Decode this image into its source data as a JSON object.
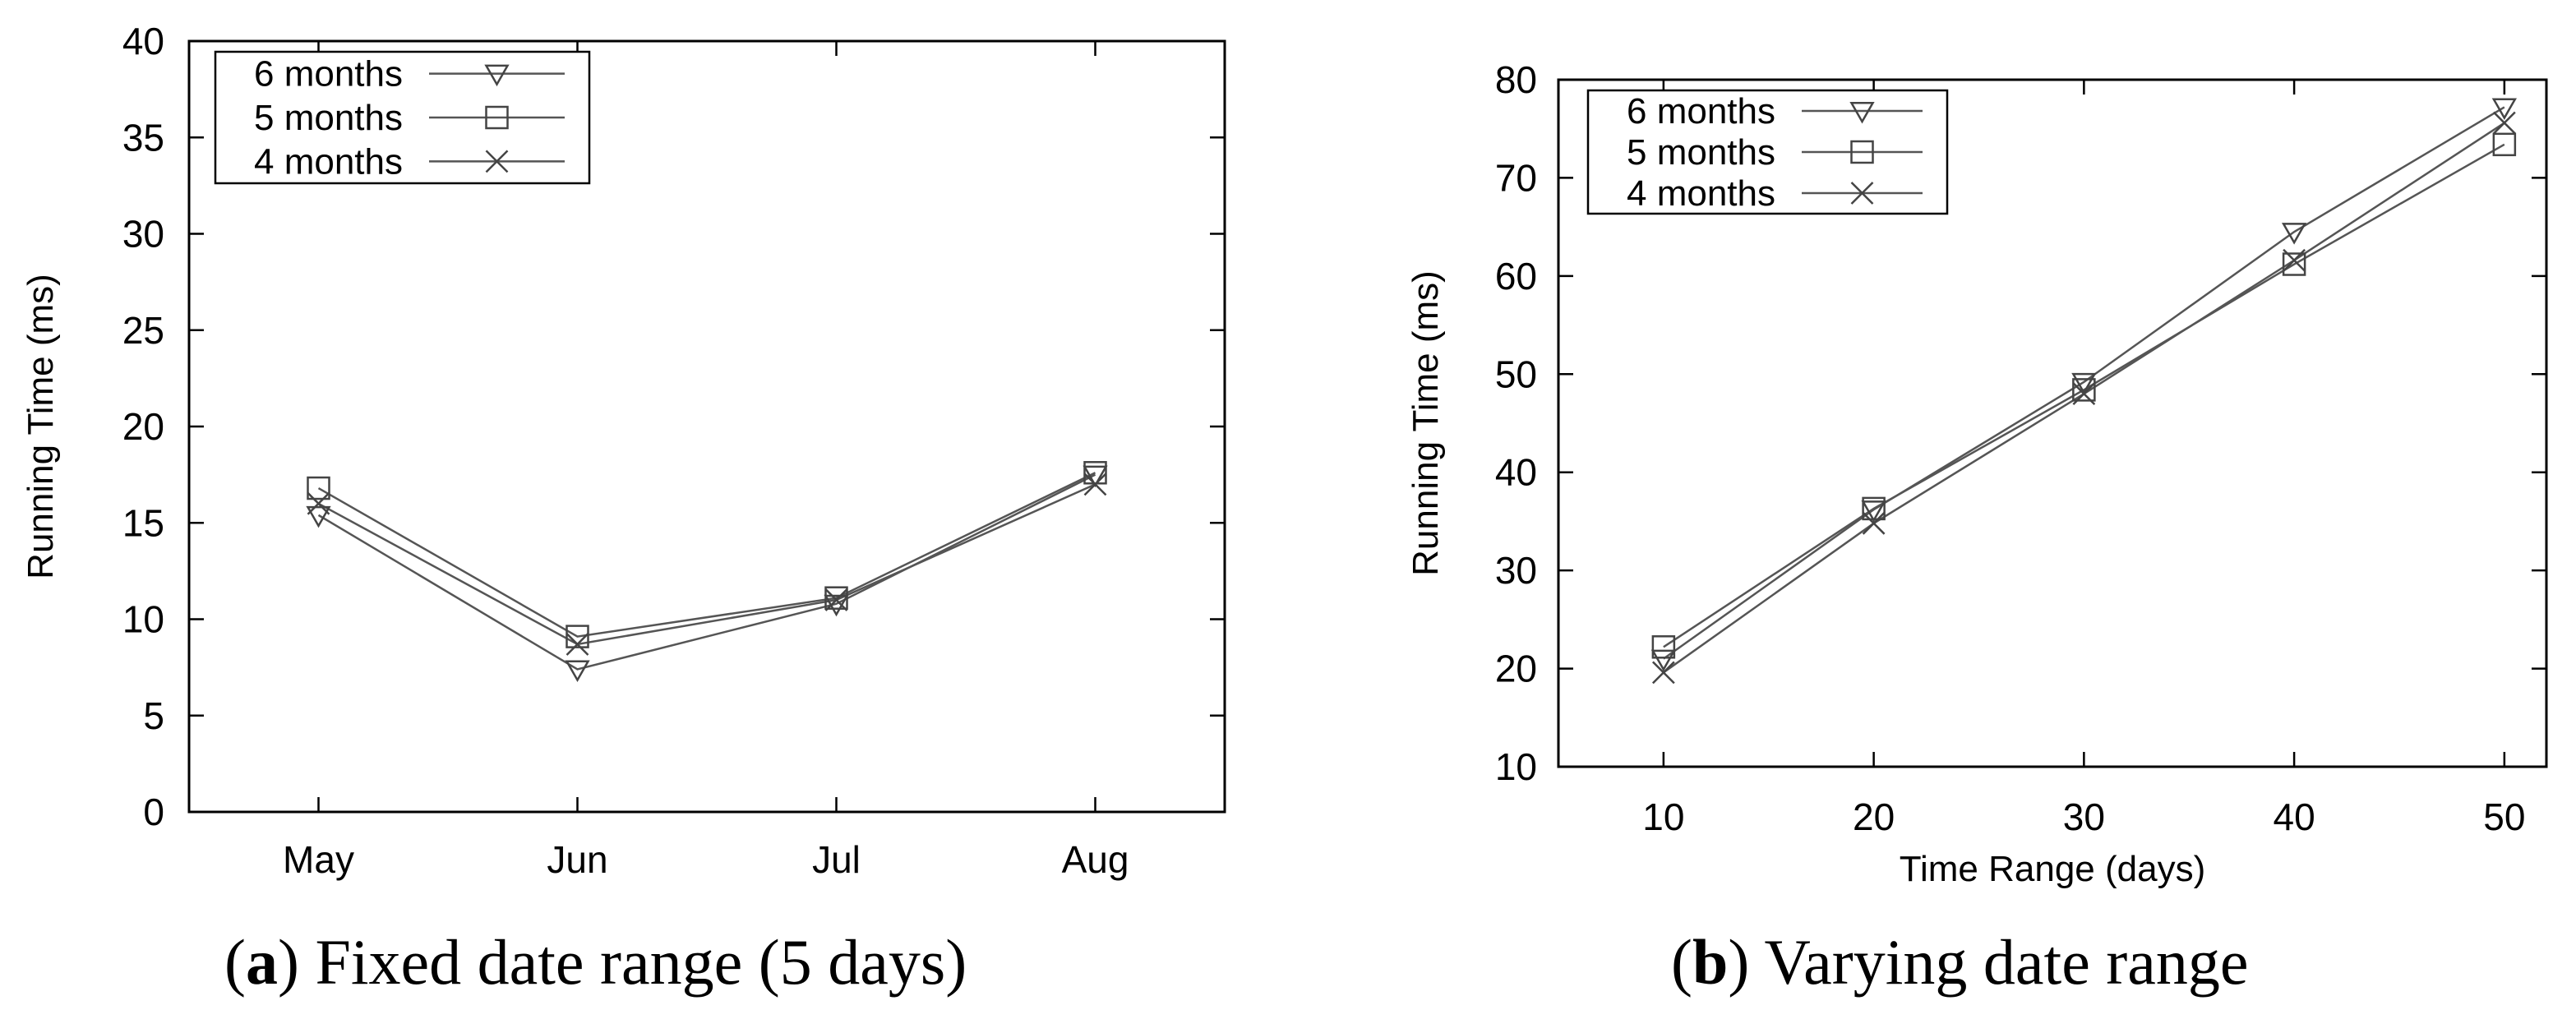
{
  "chart_data": [
    {
      "type": "line",
      "id": "a",
      "caption_letter": "a",
      "caption_text": " Fixed date range (5 days)",
      "title": "",
      "xlabel": "",
      "ylabel": "Running Time (ms)",
      "categories": [
        "May",
        "Jun",
        "Jul",
        "Aug"
      ],
      "ylim": [
        0,
        40
      ],
      "yticks": [
        0,
        5,
        10,
        15,
        20,
        25,
        30,
        35,
        40
      ],
      "series": [
        {
          "name": "6 months",
          "marker": "triangle-down",
          "values": [
            15.4,
            7.4,
            10.8,
            17.5
          ]
        },
        {
          "name": "5 months",
          "marker": "square",
          "values": [
            16.8,
            9.1,
            11.1,
            17.6
          ]
        },
        {
          "name": "4 months",
          "marker": "x",
          "values": [
            16.0,
            8.7,
            11.0,
            17.0
          ]
        }
      ],
      "legend": "top-left",
      "grid": false
    },
    {
      "type": "line",
      "id": "b",
      "caption_letter": "b",
      "caption_text": " Varying date range",
      "title": "",
      "xlabel": "Time Range (days)",
      "ylabel": "Running Time (ms)",
      "x": [
        10,
        20,
        30,
        40,
        50
      ],
      "xticks": [
        10,
        20,
        30,
        40,
        50
      ],
      "xlim": [
        5,
        52
      ],
      "ylim": [
        10,
        80
      ],
      "yticks": [
        10,
        20,
        30,
        40,
        50,
        60,
        70,
        80
      ],
      "series": [
        {
          "name": "6 months",
          "marker": "triangle-down",
          "values": [
            21.0,
            36.2,
            49.2,
            64.5,
            77.2
          ]
        },
        {
          "name": "5 months",
          "marker": "square",
          "values": [
            22.2,
            36.3,
            48.4,
            61.2,
            73.4
          ]
        },
        {
          "name": "4 months",
          "marker": "x",
          "values": [
            19.6,
            34.8,
            48.0,
            61.6,
            75.6
          ]
        }
      ],
      "legend": "top-left",
      "grid": false
    }
  ]
}
